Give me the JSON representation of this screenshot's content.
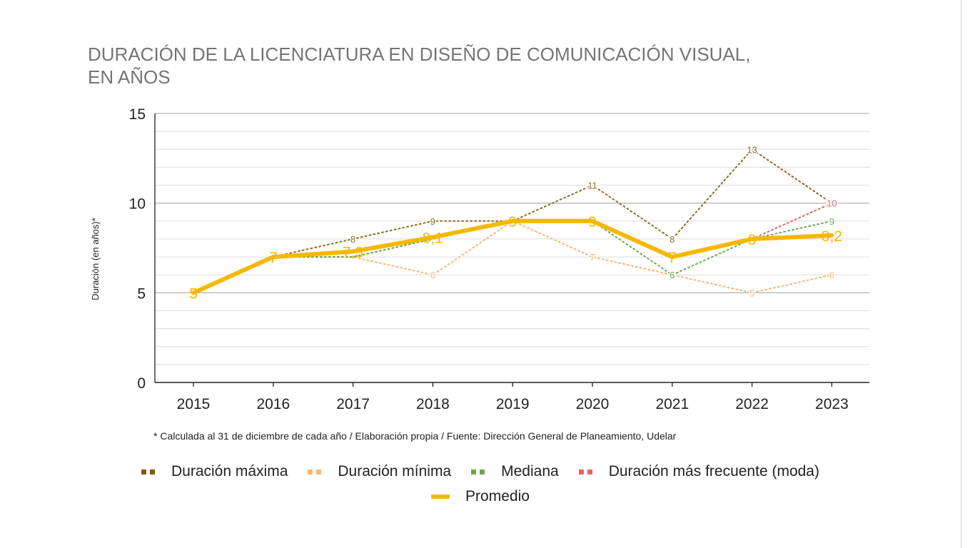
{
  "chart_data": {
    "type": "line",
    "title_line1": "DURACIÓN DE LA LICENCIATURA EN DISEÑO DE COMUNICACIÓN VISUAL,",
    "title_line2": "EN AÑOS",
    "xlabel": "",
    "ylabel": "Duración (en años)*",
    "ylim": [
      0,
      15
    ],
    "y_ticks": [
      0,
      5,
      10,
      15
    ],
    "categories": [
      "2015",
      "2016",
      "2017",
      "2018",
      "2019",
      "2020",
      "2021",
      "2022",
      "2023"
    ],
    "grid": true,
    "legend_position": "bottom",
    "footnote": "* Calculada al 31 de diciembre de cada año / Elaboración propia / Fuente: Dirección General de Planeamiento, Udelar",
    "series": [
      {
        "name": "Duración máxima",
        "color": "#8a6d1f",
        "style": "dotted",
        "values": [
          null,
          7,
          8,
          9,
          9,
          11,
          8,
          13,
          10
        ],
        "labels": [
          "",
          "",
          "8",
          "9",
          "",
          "11",
          "8",
          "13",
          ""
        ]
      },
      {
        "name": "Duración mínima",
        "color": "#f4b673",
        "style": "dotted",
        "values": [
          null,
          7,
          7,
          6,
          9,
          7,
          6,
          5,
          6
        ],
        "labels": [
          "",
          "",
          "",
          "6",
          "",
          "7",
          "",
          "5",
          "6"
        ]
      },
      {
        "name": "Mediana",
        "color": "#6aa84f",
        "style": "dotted",
        "values": [
          null,
          7,
          7,
          8,
          9,
          9,
          6,
          8,
          9
        ],
        "labels": [
          "",
          "",
          "",
          "",
          "",
          "",
          "6",
          "",
          "9"
        ]
      },
      {
        "name": "Duración más frecuente (moda)",
        "color": "#e06666",
        "style": "dotted",
        "values": [
          null,
          7,
          7,
          8,
          9,
          9,
          7,
          8,
          10
        ],
        "labels": [
          "",
          "",
          "",
          "",
          "",
          "",
          "",
          "",
          "10"
        ]
      },
      {
        "name": "Promedio",
        "color": "#f5b800",
        "style": "solid",
        "values": [
          5,
          7,
          7.3,
          8.1,
          9,
          9,
          7,
          8,
          8.2
        ],
        "labels": [
          "5",
          "7",
          "7,3",
          "8,1",
          "9",
          "9",
          "7",
          "8",
          "8,2"
        ]
      }
    ]
  }
}
